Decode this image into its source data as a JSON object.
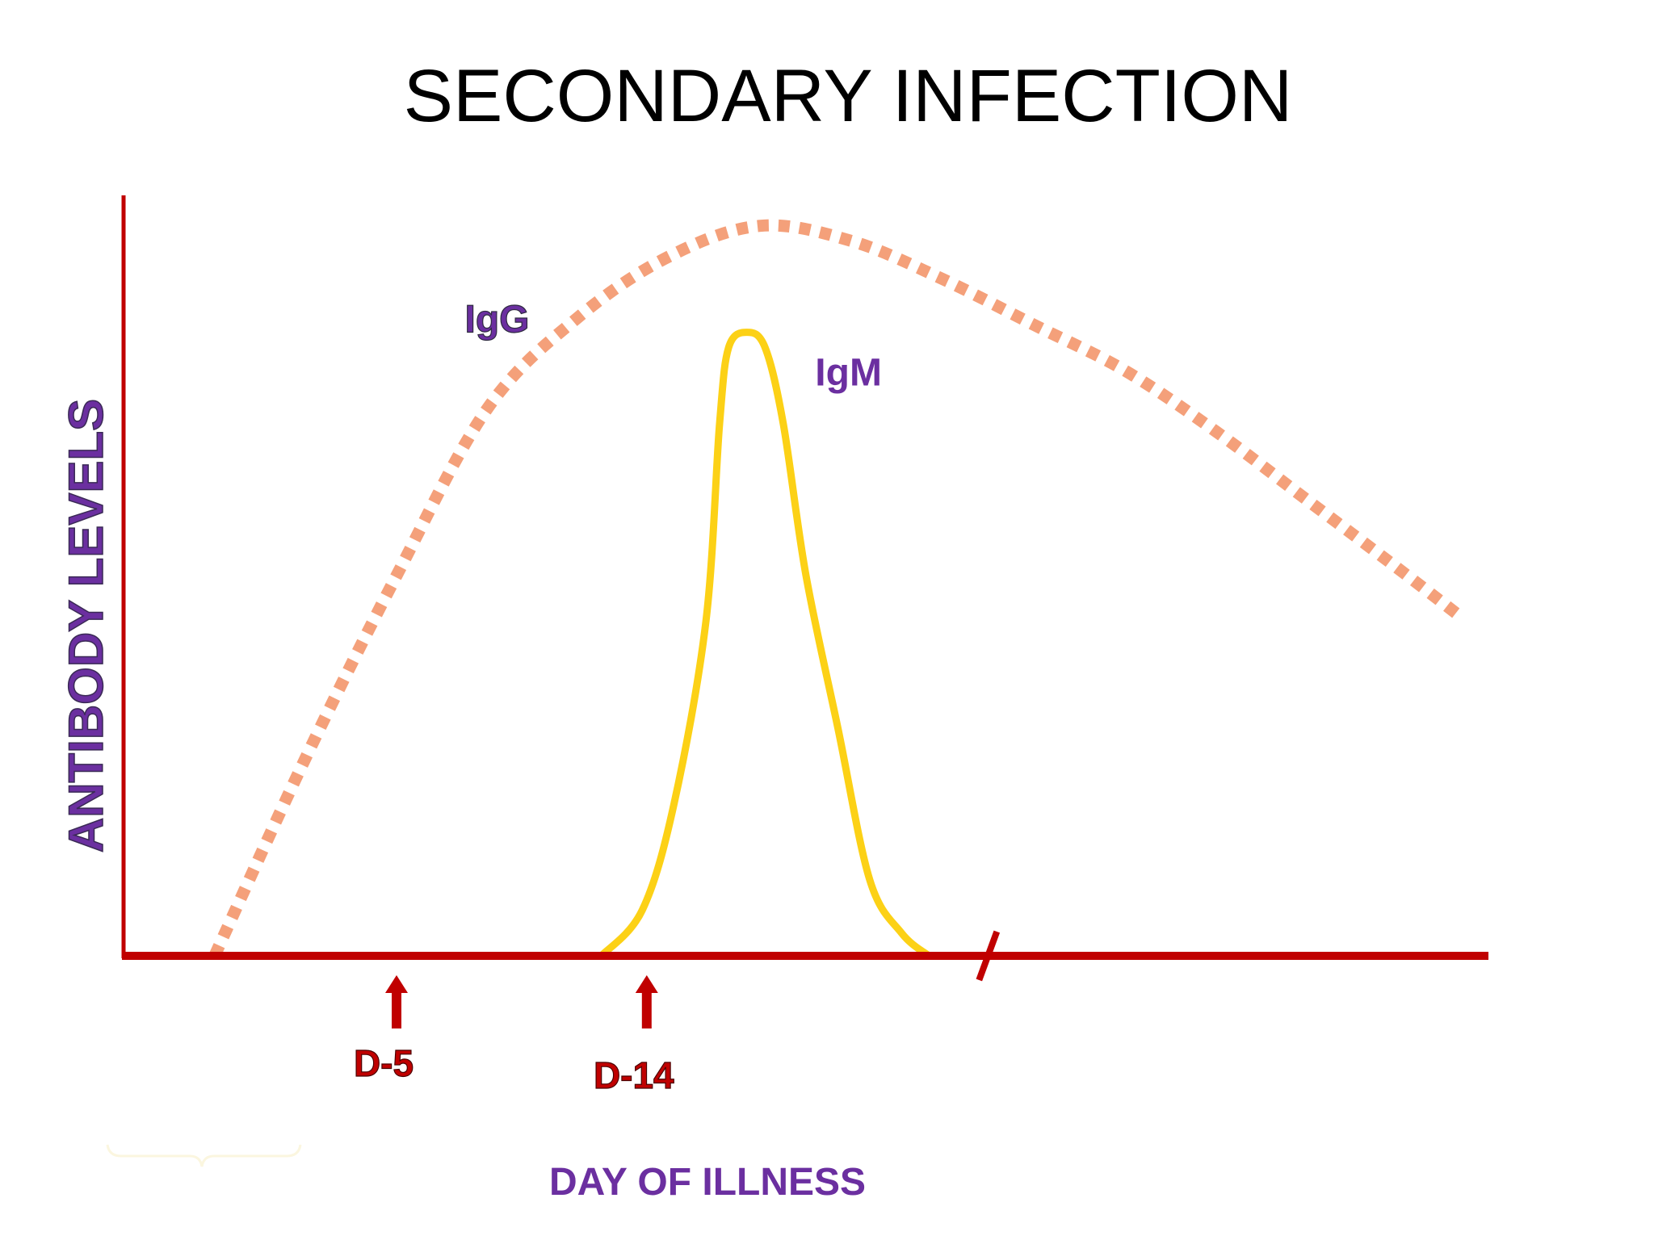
{
  "chart_data": {
    "type": "line",
    "title": "SECONDARY INFECTION",
    "xlabel": "DAY OF ILLNESS",
    "ylabel": "ANTIBODY LEVELS",
    "xlim": [
      0,
      30
    ],
    "ylim": [
      0,
      100
    ],
    "grid": false,
    "axis_break": {
      "x": 19
    },
    "series": [
      {
        "name": "IgG",
        "style": "dotted",
        "color": "#f4a07a",
        "label_position": "upper-left",
        "points": [
          {
            "x": 2,
            "y": 0
          },
          {
            "x": 4,
            "y": 26
          },
          {
            "x": 6,
            "y": 50
          },
          {
            "x": 8,
            "y": 72
          },
          {
            "x": 10,
            "y": 84
          },
          {
            "x": 12,
            "y": 92
          },
          {
            "x": 14,
            "y": 96
          },
          {
            "x": 16,
            "y": 94
          },
          {
            "x": 18,
            "y": 89
          },
          {
            "x": 20,
            "y": 83
          },
          {
            "x": 22,
            "y": 77
          },
          {
            "x": 24,
            "y": 69
          },
          {
            "x": 26,
            "y": 60
          },
          {
            "x": 28,
            "y": 51
          },
          {
            "x": 29.3,
            "y": 45
          }
        ]
      },
      {
        "name": "IgM",
        "style": "solid",
        "color": "#fcd116",
        "label_position": "right-of-peak",
        "points": [
          {
            "x": 10.5,
            "y": 0
          },
          {
            "x": 11.4,
            "y": 6
          },
          {
            "x": 12.1,
            "y": 20
          },
          {
            "x": 12.8,
            "y": 44
          },
          {
            "x": 13.1,
            "y": 70
          },
          {
            "x": 13.3,
            "y": 80
          },
          {
            "x": 13.7,
            "y": 82
          },
          {
            "x": 14.1,
            "y": 80
          },
          {
            "x": 14.5,
            "y": 70
          },
          {
            "x": 15.0,
            "y": 50
          },
          {
            "x": 15.7,
            "y": 30
          },
          {
            "x": 16.4,
            "y": 10
          },
          {
            "x": 17.1,
            "y": 3
          },
          {
            "x": 17.7,
            "y": 0
          }
        ]
      }
    ],
    "markers": [
      {
        "x": 6,
        "label": "D-5"
      },
      {
        "x": 11.5,
        "label": "D-14"
      }
    ],
    "colors": {
      "axis": "#c00000",
      "label_purple": "#6b2fa0",
      "marker_red": "#c00000"
    }
  }
}
